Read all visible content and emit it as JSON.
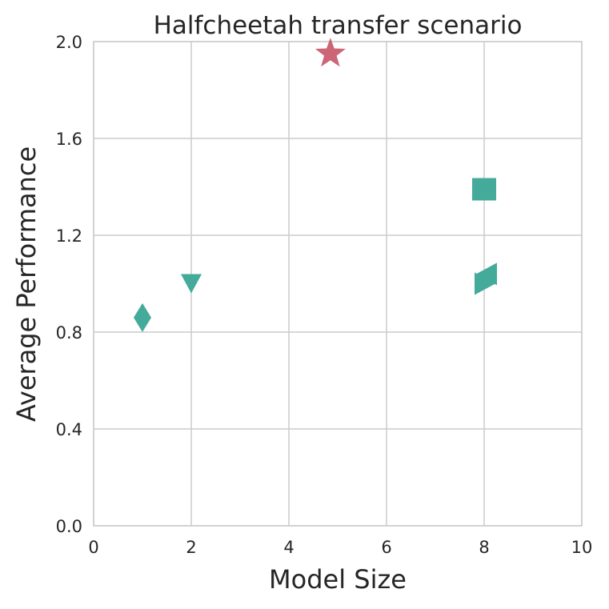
{
  "chart_data": {
    "type": "scatter",
    "title": "Halfcheetah transfer scenario",
    "xlabel": "Model Size",
    "ylabel": "Average Performance",
    "xlim": [
      0,
      10
    ],
    "ylim": [
      0,
      2.0
    ],
    "grid": true,
    "x_ticks": [
      0,
      2,
      4,
      6,
      8,
      10
    ],
    "x_tick_labels": [
      "0",
      "2",
      "4",
      "6",
      "8",
      "10"
    ],
    "y_ticks": [
      0.0,
      0.4,
      0.8,
      1.2,
      1.6,
      2.0
    ],
    "y_tick_labels": [
      "0.0",
      "0.4",
      "0.8",
      "1.2",
      "1.6",
      "2.0"
    ],
    "points": [
      {
        "x": 1.0,
        "y": 0.86,
        "marker": "diamond",
        "color": "#44aa99"
      },
      {
        "x": 2.0,
        "y": 1.0,
        "marker": "triangle-down",
        "color": "#44aa99"
      },
      {
        "x": 4.85,
        "y": 1.95,
        "marker": "star",
        "color": "#cc6677"
      },
      {
        "x": 8.0,
        "y": 1.39,
        "marker": "square",
        "color": "#44aa99"
      },
      {
        "x": 8.0,
        "y": 1.04,
        "marker": "triangle-left",
        "color": "#44aa99"
      },
      {
        "x": 8.0,
        "y": 1.0,
        "marker": "triangle-right",
        "color": "#44aa99"
      }
    ],
    "colors": {
      "grid": "#cccccc",
      "axes": "#cccccc",
      "text": "#262626"
    }
  }
}
